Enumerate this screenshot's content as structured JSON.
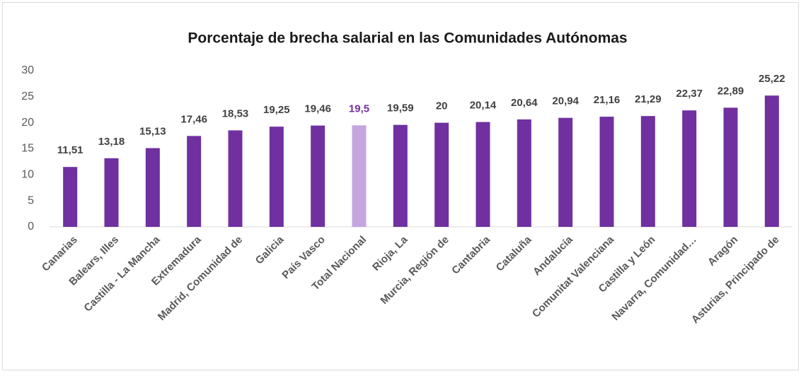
{
  "chart_data": {
    "type": "bar",
    "title": "Porcentaje de brecha salarial en las Comunidades Autónomas",
    "categories": [
      "Canarias",
      "Balears, Illes",
      "Castilla - La Mancha",
      "Extremadura",
      "Madrid, Comunidad de",
      "Galicia",
      "País Vasco",
      "Total Nacional",
      "Rioja, La",
      "Murcia, Región de",
      "Cantabria",
      "Cataluña",
      "Andalucía",
      "Comunitat Valenciana",
      "Castilla y León",
      "Navarra, Comunidad…",
      "Aragón",
      "Asturias, Principado de"
    ],
    "values": [
      11.51,
      13.18,
      15.13,
      17.46,
      18.53,
      19.25,
      19.46,
      19.5,
      19.59,
      20,
      20.14,
      20.64,
      20.94,
      21.16,
      21.29,
      22.37,
      22.89,
      25.22
    ],
    "value_labels": [
      "11,51",
      "13,18",
      "15,13",
      "17,46",
      "18,53",
      "19,25",
      "19,46",
      "19,5",
      "19,59",
      "20",
      "20,14",
      "20,64",
      "20,94",
      "21,16",
      "21,29",
      "22,37",
      "22,89",
      "25,22"
    ],
    "colors": [
      "#7030a0",
      "#7030a0",
      "#7030a0",
      "#7030a0",
      "#7030a0",
      "#7030a0",
      "#7030a0",
      "#c5a5e0",
      "#7030a0",
      "#7030a0",
      "#7030a0",
      "#7030a0",
      "#7030a0",
      "#7030a0",
      "#7030a0",
      "#7030a0",
      "#7030a0",
      "#7030a0"
    ],
    "value_label_colors": [
      "#404040",
      "#404040",
      "#404040",
      "#404040",
      "#404040",
      "#404040",
      "#404040",
      "#7030a0",
      "#404040",
      "#404040",
      "#404040",
      "#404040",
      "#404040",
      "#404040",
      "#404040",
      "#404040",
      "#404040",
      "#404040"
    ],
    "ylim": [
      0,
      30
    ],
    "yticks": [
      0,
      5,
      10,
      15,
      20,
      25,
      30
    ],
    "grid": false
  }
}
